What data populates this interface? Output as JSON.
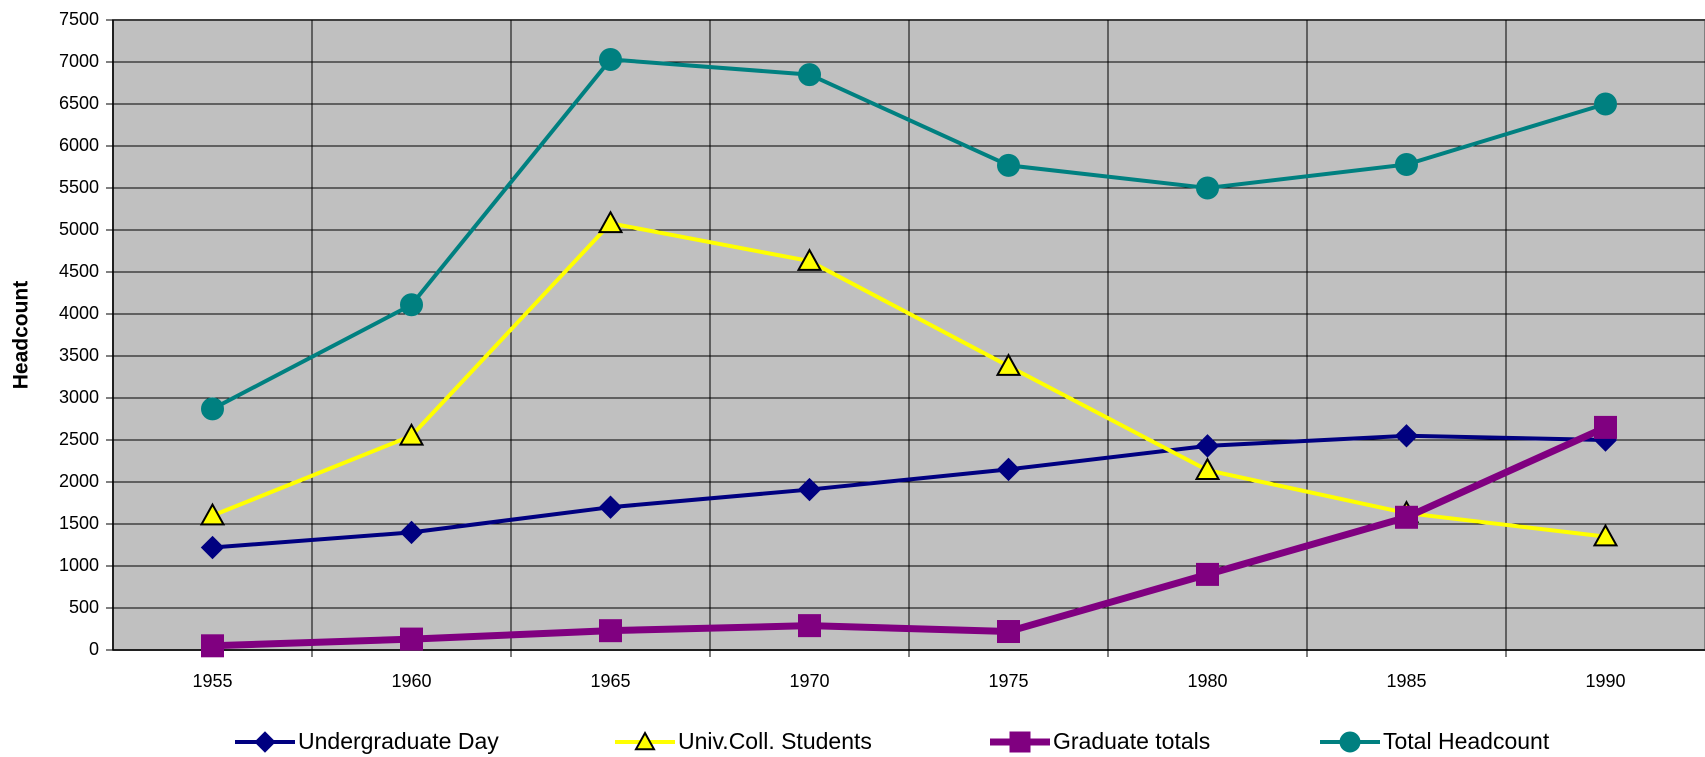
{
  "chart_data": {
    "type": "line",
    "y_label": "Headcount",
    "categories": [
      "1955",
      "1960",
      "1965",
      "1970",
      "1975",
      "1980",
      "1985",
      "1990"
    ],
    "series": [
      {
        "name": "Undergraduate Day",
        "color": "#000080",
        "marker": "diamond",
        "values": [
          1220,
          1400,
          1700,
          1910,
          2150,
          2430,
          2550,
          2500
        ]
      },
      {
        "name": "Univ.Coll. Students",
        "color": "#ffff00",
        "marker": "triangle",
        "values": [
          1600,
          2550,
          5080,
          4630,
          3380,
          2140,
          1630,
          1350
        ]
      },
      {
        "name": "Graduate totals",
        "color": "#800080",
        "marker": "square",
        "values": [
          50,
          130,
          230,
          290,
          220,
          900,
          1580,
          2650
        ]
      },
      {
        "name": "Total Headcount",
        "color": "#008080",
        "marker": "circle",
        "values": [
          2870,
          4110,
          7030,
          6850,
          5770,
          5500,
          5780,
          6500
        ]
      }
    ],
    "ylim": [
      0,
      7500
    ],
    "yticks": [
      0,
      500,
      1000,
      1500,
      2000,
      2500,
      3000,
      3500,
      4000,
      4500,
      5000,
      5500,
      6000,
      6500,
      7000,
      7500
    ],
    "grid": true,
    "legend": "bottom",
    "plot_background": "#c0c0c0"
  }
}
